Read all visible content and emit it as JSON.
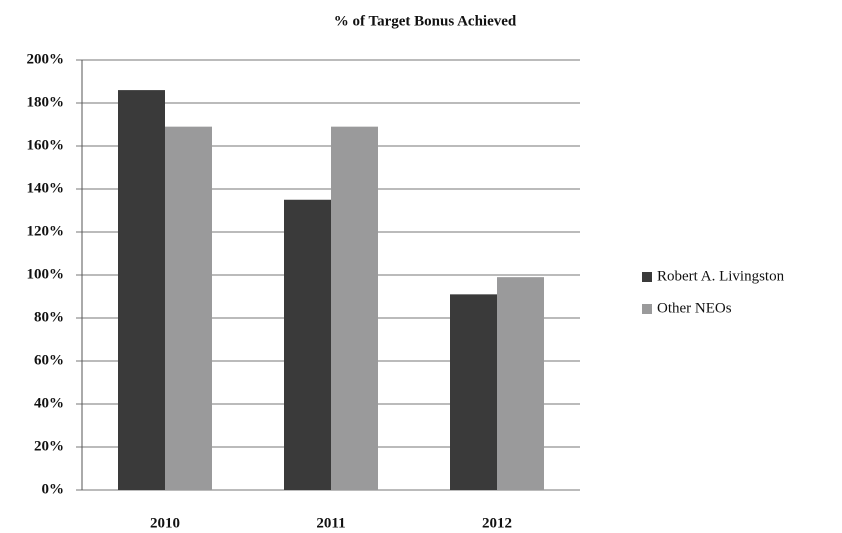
{
  "chart_data": {
    "type": "bar",
    "title": "% of Target Bonus Achieved",
    "categories": [
      "2010",
      "2011",
      "2012"
    ],
    "series": [
      {
        "name": "Robert A. Livingston",
        "color": "#3a3a3a",
        "values": [
          186,
          135,
          91
        ]
      },
      {
        "name": "Other NEOs",
        "color": "#9a9a9b",
        "values": [
          169,
          169,
          99
        ]
      }
    ],
    "ylim": [
      0,
      200
    ],
    "yticks": [
      {
        "value": 0,
        "label": "0%"
      },
      {
        "value": 20,
        "label": "20%"
      },
      {
        "value": 40,
        "label": "40%"
      },
      {
        "value": 60,
        "label": "60%"
      },
      {
        "value": 80,
        "label": "80%"
      },
      {
        "value": 100,
        "label": "100%"
      },
      {
        "value": 120,
        "label": "120%"
      },
      {
        "value": 140,
        "label": "140%"
      },
      {
        "value": 160,
        "label": "160%"
      },
      {
        "value": 180,
        "label": "180%"
      },
      {
        "value": 200,
        "label": "200%"
      }
    ],
    "grid": true,
    "legend": "right"
  }
}
